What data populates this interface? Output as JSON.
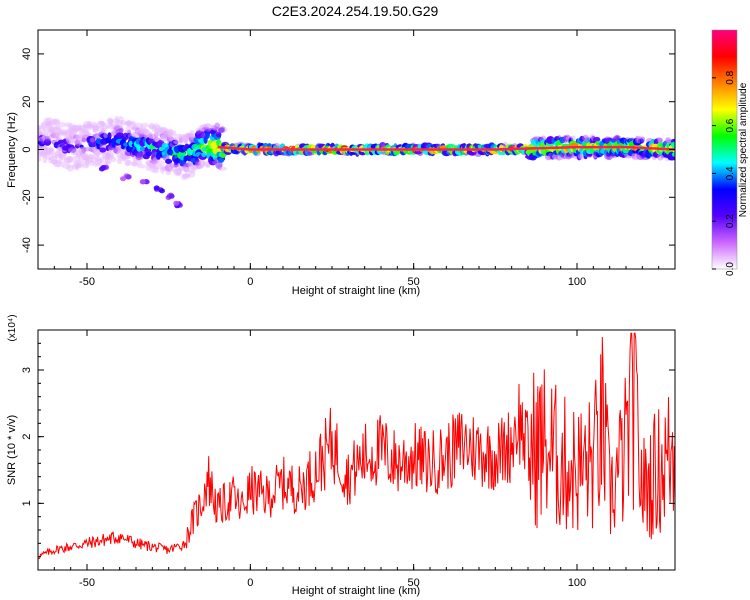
{
  "page": {
    "title": "C2E3.2024.254.19.50.G29"
  },
  "chart_data": [
    {
      "type": "heatmap",
      "title": "C2E3.2024.254.19.50.G29",
      "xlabel": "Height of straight line (km)",
      "ylabel": "Frequency (Hz)",
      "xlim": [
        -65,
        130
      ],
      "ylim": [
        -50,
        50
      ],
      "x_ticks": [
        -50,
        0,
        50,
        100
      ],
      "y_ticks": [
        -40,
        -20,
        0,
        20,
        40
      ],
      "colorbar": {
        "label": "Normalized spectral amplitude",
        "range": [
          0,
          1
        ],
        "ticks": [
          "0.0",
          "0.2",
          "0.4",
          "0.6",
          "0.8"
        ],
        "stops": [
          "#ffffff",
          "#cc66ff",
          "#5500ff",
          "#0000ff",
          "#00ffff",
          "#00ff00",
          "#ffff00",
          "#ff8000",
          "#ff0000",
          "#ff0080"
        ]
      },
      "ridge": [
        {
          "x": -60,
          "y": 3,
          "amp": 0.35
        },
        {
          "x": -55,
          "y": 1,
          "amp": 0.4
        },
        {
          "x": -50,
          "y": 2,
          "amp": 0.4
        },
        {
          "x": -45,
          "y": 3,
          "amp": 0.45
        },
        {
          "x": -40,
          "y": 4,
          "amp": 0.5
        },
        {
          "x": -35,
          "y": 2,
          "amp": 0.55
        },
        {
          "x": -30,
          "y": 1,
          "amp": 0.55
        },
        {
          "x": -25,
          "y": -1,
          "amp": 0.6
        },
        {
          "x": -20,
          "y": -3,
          "amp": 0.6
        },
        {
          "x": -15,
          "y": 1,
          "amp": 0.7
        },
        {
          "x": -10,
          "y": 1,
          "amp": 0.8
        },
        {
          "x": 0,
          "y": 0,
          "amp": 0.95
        },
        {
          "x": 25,
          "y": 0,
          "amp": 0.95
        },
        {
          "x": 50,
          "y": 0,
          "amp": 0.95
        },
        {
          "x": 75,
          "y": 0,
          "amp": 0.95
        },
        {
          "x": 100,
          "y": 1,
          "amp": 0.85
        },
        {
          "x": 115,
          "y": 1,
          "amp": 0.8
        },
        {
          "x": 130,
          "y": 0,
          "amp": 0.85
        }
      ],
      "branch": [
        {
          "x": -45,
          "y": -8
        },
        {
          "x": -38,
          "y": -12
        },
        {
          "x": -32,
          "y": -14
        },
        {
          "x": -28,
          "y": -17
        },
        {
          "x": -25,
          "y": -20
        },
        {
          "x": -22,
          "y": -23
        }
      ]
    },
    {
      "type": "line",
      "xlabel": "Height of straight line (km)",
      "ylabel": "SNR (10 * v/v)",
      "yscale_label": "(x10⁴)",
      "xlim": [
        -65,
        130
      ],
      "ylim": [
        0,
        3.6
      ],
      "x_ticks": [
        -50,
        0,
        50,
        100
      ],
      "y_ticks": [
        1,
        2,
        3
      ],
      "series": [
        {
          "color": "#ff0000",
          "x": [
            -65,
            -60,
            -55,
            -50,
            -45,
            -40,
            -35,
            -30,
            -25,
            -20,
            -18,
            -15,
            -13,
            -10,
            -8,
            -5,
            -3,
            0,
            5,
            10,
            15,
            20,
            25,
            30,
            35,
            40,
            45,
            50,
            55,
            60,
            65,
            70,
            75,
            80,
            82,
            85,
            90,
            95,
            100,
            105,
            108,
            110,
            115,
            117,
            120,
            125,
            130
          ],
          "y": [
            0.2,
            0.3,
            0.35,
            0.4,
            0.45,
            0.5,
            0.4,
            0.35,
            0.3,
            0.4,
            0.7,
            1.0,
            1.4,
            0.9,
            1.0,
            1.1,
            0.9,
            1.2,
            1.1,
            1.3,
            1.2,
            1.5,
            1.9,
            1.4,
            1.7,
            1.8,
            1.6,
            1.7,
            1.6,
            1.7,
            1.9,
            1.8,
            1.7,
            1.9,
            2.3,
            1.8,
            1.9,
            1.6,
            1.5,
            1.6,
            2.2,
            1.1,
            1.8,
            2.8,
            1.2,
            1.5,
            1.8
          ]
        }
      ]
    }
  ]
}
